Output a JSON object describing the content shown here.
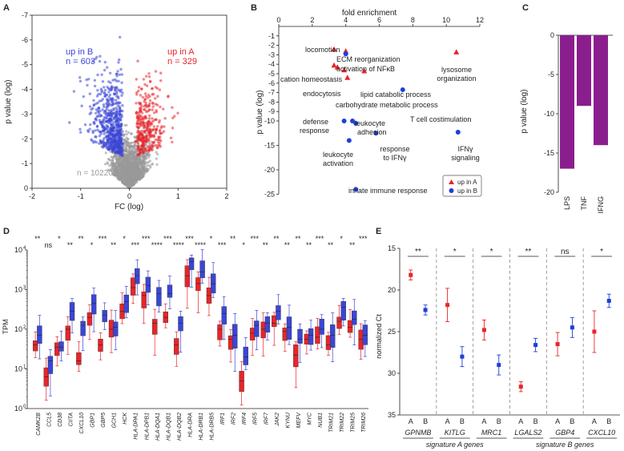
{
  "panels": {
    "A": "A",
    "B": "B",
    "C": "C",
    "D": "D",
    "E": "E"
  },
  "chart_data": [
    {
      "panel": "A",
      "type": "scatter",
      "xlabel": "FC (log)",
      "ylabel": "p value (log)",
      "xlim": [
        -2,
        2
      ],
      "ylim": [
        0,
        -7
      ],
      "xticks": [
        -2,
        -1,
        0,
        1,
        2
      ],
      "yticks": [
        0,
        -1,
        -2,
        -3,
        -4,
        -5,
        -6,
        -7
      ],
      "groups": [
        {
          "label": "up in B",
          "count_label": "n = 603",
          "color": "#3a46d6",
          "n": 603
        },
        {
          "label": "up in A",
          "count_label": "n = 329",
          "color": "#e8252a",
          "n": 329
        },
        {
          "label": "",
          "count_label": "n = 10220",
          "color": "#9a9a9a",
          "n": 10220
        }
      ]
    },
    {
      "panel": "B",
      "type": "scatter",
      "xlabel": "fold enrichment",
      "ylabel": "p value (log)",
      "xlim": [
        0,
        12
      ],
      "ylim": [
        0,
        -25
      ],
      "xticks": [
        0,
        2,
        4,
        6,
        8,
        10,
        12
      ],
      "yticks": [
        -1,
        -2,
        -3,
        -4,
        -5,
        -6,
        -7,
        -8,
        -9,
        -10,
        -15,
        -20,
        -25
      ],
      "legend": [
        {
          "label": "up in A",
          "color": "#e8252a",
          "marker": "triangle"
        },
        {
          "label": "up in B",
          "color": "#1f3fd8",
          "marker": "circle"
        }
      ],
      "points": [
        {
          "term": "locomotion",
          "x": 3.3,
          "y": -2.4,
          "group": "A"
        },
        {
          "term": "ECM reorganization",
          "x": 4.0,
          "y": -2.6,
          "group": "A"
        },
        {
          "term": "activation of NFκB",
          "x": 4.0,
          "y": -2.9,
          "group": "B"
        },
        {
          "term": "lysosome organization",
          "x": 10.6,
          "y": -2.7,
          "group": "A"
        },
        {
          "term": "cation homeostasis",
          "x": 3.3,
          "y": -4.1,
          "group": "A"
        },
        {
          "term": "",
          "x": 3.5,
          "y": -4.3,
          "group": "A"
        },
        {
          "term": "endocytosis",
          "x": 3.9,
          "y": -4.6,
          "group": "A"
        },
        {
          "term": "lipid catabolic process",
          "x": 5.1,
          "y": -4.7,
          "group": "A"
        },
        {
          "term": "carbohydrate metabolic process",
          "x": 4.1,
          "y": -5.4,
          "group": "A"
        },
        {
          "term": "T cell costimulation",
          "x": 7.4,
          "y": -6.7,
          "group": "B"
        },
        {
          "term": "defense response",
          "x": 3.9,
          "y": -10,
          "group": "B"
        },
        {
          "term": "",
          "x": 4.4,
          "y": -10,
          "group": "B"
        },
        {
          "term": "leukocyte adhesion",
          "x": 4.6,
          "y": -10.5,
          "group": "B"
        },
        {
          "term": "response to IFNγ",
          "x": 5.8,
          "y": -12.5,
          "group": "B"
        },
        {
          "term": "IFNγ signaling",
          "x": 10.7,
          "y": -12.3,
          "group": "B"
        },
        {
          "term": "leukocyte activation",
          "x": 4.2,
          "y": -14,
          "group": "B"
        },
        {
          "term": "innate immune response",
          "x": 4.6,
          "y": -24,
          "group": "B"
        }
      ],
      "point_labels": [
        {
          "id": "locomotion",
          "text": "locomotion"
        },
        {
          "id": "ecm",
          "text": "ECM reorganization"
        },
        {
          "id": "nfkb",
          "text": "activation of NFκB"
        },
        {
          "id": "lyso1",
          "text": "lysosome"
        },
        {
          "id": "lyso2",
          "text": "organization"
        },
        {
          "id": "cation",
          "text": "cation homeostasis"
        },
        {
          "id": "endo",
          "text": "endocytosis"
        },
        {
          "id": "lipid",
          "text": "lipid catabolic process"
        },
        {
          "id": "carb",
          "text": "carbohydrate metabolic process"
        },
        {
          "id": "tcell",
          "text": "T cell costimulation"
        },
        {
          "id": "def1",
          "text": "defense"
        },
        {
          "id": "def2",
          "text": "response"
        },
        {
          "id": "leuad1",
          "text": "leukocyte"
        },
        {
          "id": "leuad2",
          "text": "adhesion"
        },
        {
          "id": "leuact1",
          "text": "leukocyte"
        },
        {
          "id": "leuact2",
          "text": "activation"
        },
        {
          "id": "resp1",
          "text": "response"
        },
        {
          "id": "resp2",
          "text": "to IFNγ"
        },
        {
          "id": "ifn1",
          "text": "IFNγ"
        },
        {
          "id": "ifn2",
          "text": "signaling"
        },
        {
          "id": "innate",
          "text": "innate immune response"
        }
      ]
    },
    {
      "panel": "C",
      "type": "bar",
      "ylabel": "p value (log)",
      "categories": [
        "LPS",
        "TNF",
        "IFNG"
      ],
      "values": [
        -17,
        -9,
        -14
      ],
      "ylim": [
        0,
        -20
      ],
      "yticks": [
        0,
        -5,
        -10,
        -15,
        -20
      ],
      "color": "#8b1e8e"
    },
    {
      "panel": "D",
      "type": "box",
      "ylabel": "TPM",
      "yscale": "log",
      "ylim_exp": [
        0,
        4
      ],
      "ytick_labels": [
        "10",
        "10",
        "10",
        "10",
        "10"
      ],
      "ytick_exps": [
        "0",
        "1",
        "2",
        "3",
        "4"
      ],
      "colors": {
        "A": "#e8252a",
        "B": "#3a46d6"
      },
      "genes": [
        "CAMK2B",
        "CCL5",
        "CD38",
        "CIITA",
        "CXCL10",
        "GBP1",
        "GBP5",
        "GCH1",
        "HCK",
        "HLA-DPA1",
        "HLA-DPB1",
        "HLA-DQA1",
        "HLA-DQB1",
        "HLA-DQB2",
        "HLA-DRA",
        "HLA-DRB1",
        "HLA-DRB5",
        "IRF1",
        "IRF2",
        "IRF4",
        "IRF5",
        "IRF7",
        "JAK2",
        "KYNU",
        "MEFV",
        "MYC",
        "NUB1",
        "TRIM21",
        "TRIM22",
        "TRIM25",
        "TRIM26"
      ],
      "significance": [
        "**",
        "ns",
        "*",
        "**",
        "**",
        "*",
        "***",
        "**",
        "*",
        "***",
        "***",
        "****",
        "***",
        "****",
        "***",
        "****",
        "*",
        "***",
        "**",
        "*",
        "***",
        "**",
        "**",
        "**",
        "**",
        "**",
        "***",
        "**",
        "*",
        "**",
        "***"
      ],
      "medians_A": [
        1.6,
        0.8,
        1.55,
        2.0,
        1.2,
        2.3,
        1.6,
        2.0,
        2.45,
        3.05,
        2.85,
        2.15,
        2.3,
        1.6,
        3.35,
        3.15,
        2.85,
        2.0,
        1.75,
        0.7,
        1.9,
        2.0,
        2.15,
        1.95,
        1.35,
        1.75,
        1.8,
        1.6,
        2.2,
        2.05,
        1.75
      ],
      "medians_B": [
        1.85,
        1.2,
        1.55,
        2.45,
        2.1,
        2.65,
        2.35,
        2.05,
        2.7,
        3.35,
        3.1,
        2.9,
        2.9,
        2.15,
        3.7,
        3.45,
        3.15,
        2.4,
        1.85,
        1.3,
        2.1,
        2.15,
        2.45,
        2.05,
        1.75,
        1.85,
        2.0,
        1.85,
        2.55,
        2.25,
        1.85
      ]
    },
    {
      "panel": "E",
      "type": "errorbar",
      "ylabel": "normalized Ct",
      "ylim": [
        15,
        35
      ],
      "yticks": [
        15,
        20,
        25,
        30,
        35
      ],
      "group_labels": [
        "A",
        "B"
      ],
      "genes": [
        "GPNMB",
        "KITLG",
        "MRC1",
        "LGALS2",
        "GBP4",
        "CXCL10"
      ],
      "significance": [
        "**",
        "*",
        "*",
        "**",
        "ns",
        "*"
      ],
      "means_A": [
        18.2,
        21.8,
        24.8,
        31.6,
        26.5,
        25.0
      ],
      "err_A": [
        0.6,
        2.0,
        1.2,
        0.6,
        1.4,
        2.5
      ],
      "means_B": [
        22.4,
        28.0,
        29.0,
        26.6,
        24.5,
        21.3
      ],
      "err_B": [
        0.6,
        1.2,
        1.2,
        0.8,
        1.2,
        0.8
      ],
      "colors": {
        "A": "#e8252a",
        "B": "#1f3fd8"
      },
      "set_labels": [
        "signature A genes",
        "signature B genes"
      ]
    }
  ]
}
